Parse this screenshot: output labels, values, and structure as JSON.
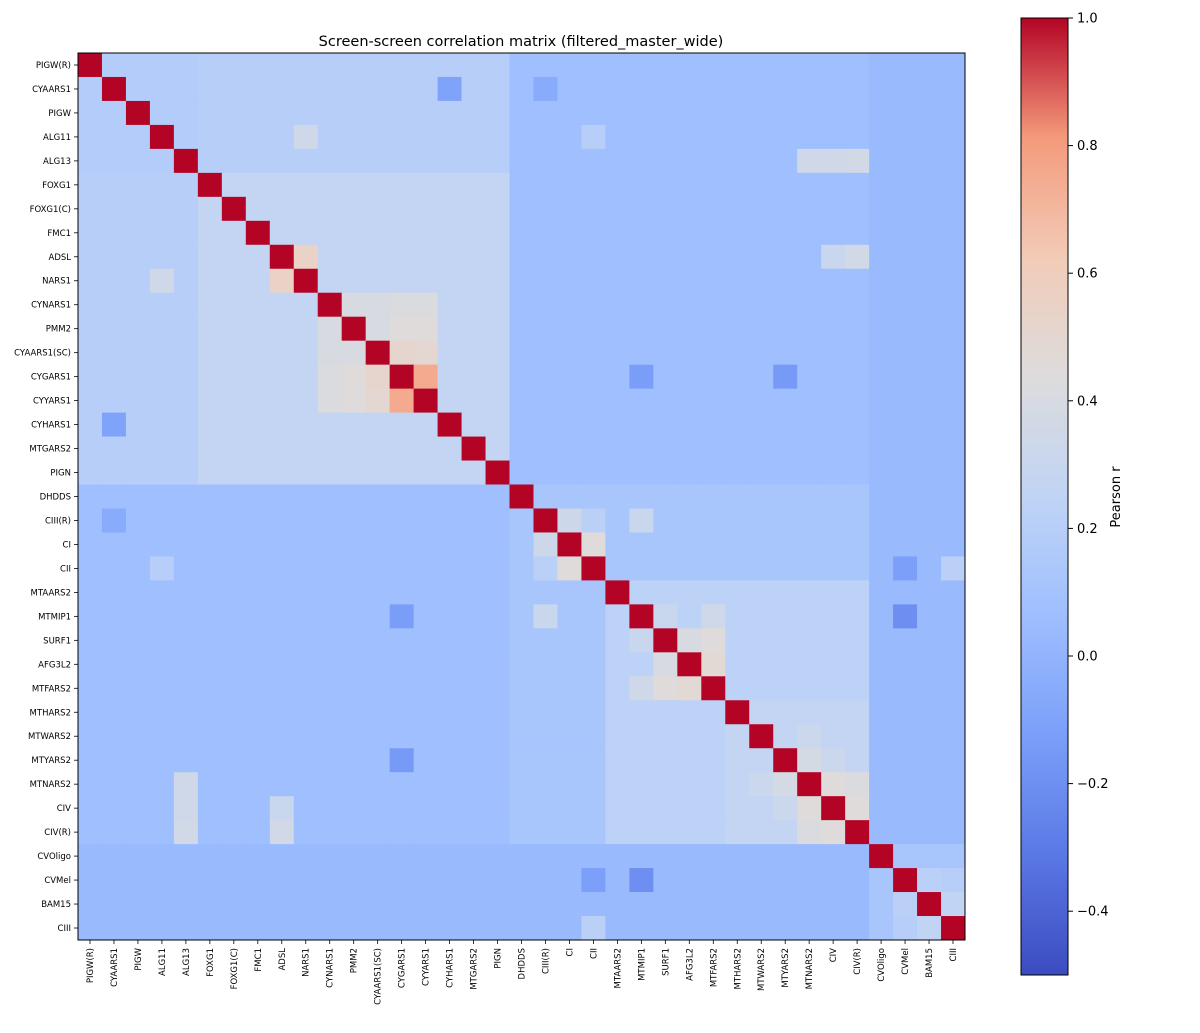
{
  "chart_data": {
    "type": "heatmap",
    "title": "Screen-screen correlation matrix (filtered_master_wide)",
    "colorbar_label": "Pearson r",
    "colormap": "coolwarm",
    "vmin": -0.5,
    "vmax": 1.0,
    "colorbar_ticks": [
      "1.0",
      "0.8",
      "0.6",
      "0.4",
      "0.2",
      "0.0",
      "−0.2",
      "−0.4"
    ],
    "colorbar_tick_values": [
      1.0,
      0.8,
      0.6,
      0.4,
      0.2,
      0.0,
      -0.2,
      -0.4
    ],
    "labels": [
      "PIGW(R)",
      "CYAARS1",
      "PIGW",
      "ALG11",
      "ALG13",
      "FOXG1",
      "FOXG1(C)",
      "FMC1",
      "ADSL",
      "NARS1",
      "CYNARS1",
      "PMM2",
      "CYAARS1(SC)",
      "CYGARS1",
      "CYYARS1",
      "CYHARS1",
      "MTGARS2",
      "PIGN",
      "DHDDS",
      "CIII(R)",
      "CI",
      "CII",
      "MTAARS2",
      "MTMIP1",
      "SURF1",
      "AFG3L2",
      "MTFARS2",
      "MTHARS2",
      "MTWARS2",
      "MTYARS2",
      "MTNARS2",
      "CIV",
      "CIV(R)",
      "CVOligo",
      "CVMel",
      "BAM15",
      "CIII"
    ],
    "default_r": 0.12,
    "blocks": [
      {
        "rows": [
          0,
          1,
          2,
          3,
          4
        ],
        "cols": [
          0,
          1,
          2,
          3,
          4
        ],
        "r": 0.18
      },
      {
        "rows": [
          5,
          6,
          7,
          8,
          9,
          10,
          11,
          12,
          13,
          14,
          15,
          16,
          17
        ],
        "cols": [
          5,
          6,
          7,
          8,
          9,
          10,
          11,
          12,
          13,
          14,
          15,
          16,
          17
        ],
        "r": 0.27
      },
      {
        "rows": [
          0,
          1,
          2,
          3,
          4
        ],
        "cols": [
          5,
          6,
          7,
          8,
          9,
          10,
          11,
          12,
          13,
          14,
          15,
          16,
          17
        ],
        "r": 0.2
      },
      {
        "rows": [
          10,
          11,
          12,
          13,
          14
        ],
        "cols": [
          10,
          11,
          12,
          13,
          14
        ],
        "r": 0.4
      },
      {
        "rows": [
          19,
          20,
          21
        ],
        "cols": [
          19,
          20,
          21
        ],
        "r": 0.25
      },
      {
        "rows": [
          22,
          23,
          24,
          25,
          26,
          27,
          28,
          29,
          30,
          31,
          32
        ],
        "cols": [
          22,
          23,
          24,
          25,
          26,
          27,
          28,
          29,
          30,
          31,
          32
        ],
        "r": 0.23
      },
      {
        "rows": [
          27,
          28,
          29,
          30,
          31,
          32
        ],
        "cols": [
          27,
          28,
          29,
          30,
          31,
          32
        ],
        "r": 0.27
      },
      {
        "rows": [
          33,
          34,
          35,
          36
        ],
        "cols": [
          0,
          1,
          2,
          3,
          4,
          5,
          6,
          7,
          8,
          9,
          10,
          11,
          12,
          13,
          14,
          15,
          16,
          17,
          18,
          19,
          20,
          21,
          22,
          23,
          24,
          25,
          26,
          27,
          28,
          29,
          30,
          31,
          32
        ],
        "r": 0.04
      },
      {
        "rows": [
          0,
          1,
          2,
          3,
          4,
          5,
          6,
          7,
          8,
          9,
          10,
          11,
          12,
          13,
          14,
          15,
          16,
          17
        ],
        "cols": [
          18,
          19,
          20,
          21,
          22,
          23,
          24,
          25,
          26,
          27,
          28,
          29,
          30,
          31,
          32
        ],
        "r": 0.07
      }
    ],
    "overrides": [
      [
        8,
        9,
        0.55
      ],
      [
        3,
        9,
        0.35
      ],
      [
        12,
        13,
        0.52
      ],
      [
        12,
        14,
        0.5
      ],
      [
        13,
        14,
        0.75
      ],
      [
        10,
        13,
        0.42
      ],
      [
        10,
        14,
        0.42
      ],
      [
        11,
        13,
        0.45
      ],
      [
        11,
        14,
        0.45
      ],
      [
        10,
        11,
        0.4
      ],
      [
        11,
        12,
        0.4
      ],
      [
        20,
        21,
        0.45
      ],
      [
        19,
        20,
        0.33
      ],
      [
        19,
        21,
        0.22
      ],
      [
        21,
        36,
        0.22
      ],
      [
        19,
        23,
        0.3
      ],
      [
        24,
        25,
        0.4
      ],
      [
        24,
        26,
        0.45
      ],
      [
        25,
        26,
        0.48
      ],
      [
        23,
        26,
        0.35
      ],
      [
        23,
        24,
        0.3
      ],
      [
        30,
        31,
        0.45
      ],
      [
        30,
        32,
        0.42
      ],
      [
        31,
        32,
        0.45
      ],
      [
        29,
        30,
        0.38
      ],
      [
        28,
        30,
        0.32
      ],
      [
        29,
        31,
        0.32
      ],
      [
        4,
        30,
        0.34
      ],
      [
        4,
        31,
        0.34
      ],
      [
        4,
        32,
        0.36
      ],
      [
        8,
        32,
        0.36
      ],
      [
        8,
        31,
        0.3
      ],
      [
        23,
        34,
        -0.2
      ],
      [
        21,
        34,
        -0.12
      ],
      [
        13,
        29,
        -0.15
      ],
      [
        13,
        23,
        -0.13
      ],
      [
        1,
        15,
        -0.1
      ],
      [
        34,
        35,
        0.22
      ],
      [
        35,
        36,
        0.26
      ],
      [
        34,
        36,
        0.2
      ],
      [
        1,
        19,
        -0.05
      ],
      [
        3,
        21,
        0.2
      ]
    ]
  }
}
